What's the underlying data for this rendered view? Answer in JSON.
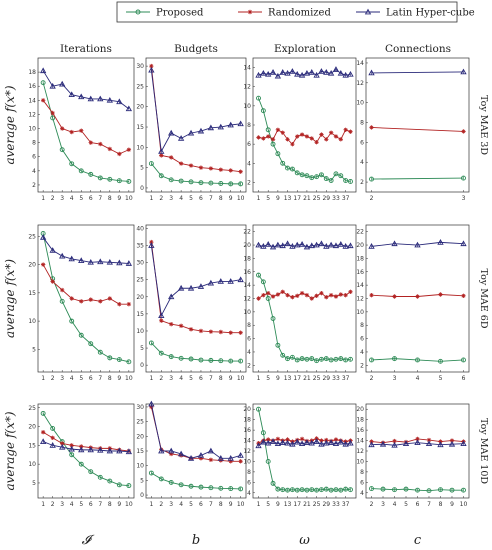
{
  "legend": [
    {
      "name": "Proposed",
      "color": "#2e8b57",
      "marker": "circle"
    },
    {
      "name": "Randomized",
      "color": "#b22222",
      "marker": "star"
    },
    {
      "name": "Latin Hyper-cube",
      "color": "#2a2a7a",
      "marker": "triangle"
    }
  ],
  "column_titles": [
    "Iterations",
    "Budgets",
    "Exploration",
    "Connections"
  ],
  "row_labels": [
    "Toy MAE 3D",
    "Toy MAE 6D",
    "Toy MAE 10D"
  ],
  "ylabel": "average f(x*)",
  "xlabels": [
    "𝓘",
    "b",
    "ω",
    "c"
  ],
  "chart_data": [
    {
      "type": "line",
      "row": 0,
      "col": 0,
      "x": [
        1,
        2,
        3,
        4,
        5,
        6,
        7,
        8,
        9,
        10
      ],
      "ylim": [
        1,
        20
      ],
      "yticks": [
        2,
        4,
        6,
        8,
        10,
        12,
        14,
        16,
        18
      ],
      "xticks": [
        1,
        2,
        3,
        4,
        5,
        6,
        7,
        8,
        9,
        10
      ],
      "series": [
        {
          "name": "Proposed",
          "values": [
            16.5,
            11.5,
            7,
            5,
            4,
            3.5,
            3,
            2.8,
            2.6,
            2.5
          ]
        },
        {
          "name": "Randomized",
          "values": [
            14,
            12.2,
            10,
            9.5,
            9.7,
            8,
            7.8,
            7.1,
            6.4,
            7
          ]
        },
        {
          "name": "Latin Hyper-cube",
          "values": [
            18.2,
            16,
            16.3,
            14.8,
            14.5,
            14.2,
            14.2,
            14,
            13.8,
            12.8
          ]
        }
      ]
    },
    {
      "type": "line",
      "row": 0,
      "col": 1,
      "x": [
        1,
        2,
        3,
        4,
        5,
        6,
        7,
        8,
        9,
        10
      ],
      "ylim": [
        -1,
        32
      ],
      "yticks": [
        0,
        5,
        10,
        15,
        20,
        25,
        30
      ],
      "xticks": [
        1,
        2,
        3,
        4,
        5,
        6,
        7,
        8,
        9,
        10
      ],
      "series": [
        {
          "name": "Proposed",
          "values": [
            6,
            3,
            2,
            1.7,
            1.5,
            1.3,
            1.2,
            1.1,
            1.0,
            1.0
          ]
        },
        {
          "name": "Randomized",
          "values": [
            30,
            8,
            7.5,
            6,
            5.5,
            5,
            4.8,
            4.5,
            4.3,
            4
          ]
        },
        {
          "name": "Latin Hyper-cube",
          "values": [
            29,
            9,
            13.5,
            12.2,
            13.5,
            14,
            14.8,
            15,
            15.5,
            15.8
          ]
        }
      ]
    },
    {
      "type": "line",
      "row": 0,
      "col": 2,
      "x": [
        1,
        3,
        5,
        7,
        9,
        11,
        13,
        15,
        17,
        19,
        21,
        23,
        25,
        27,
        29,
        31,
        33,
        35,
        37,
        39
      ],
      "ylim": [
        1,
        15
      ],
      "yticks": [
        2,
        4,
        6,
        8,
        10,
        12,
        14
      ],
      "xticks": [
        1,
        5,
        9,
        13,
        17,
        21,
        25,
        29,
        33,
        37
      ],
      "series": [
        {
          "name": "Proposed",
          "values": [
            10.8,
            9.5,
            7.5,
            6,
            5,
            4,
            3.5,
            3.4,
            3,
            2.8,
            2.7,
            2.5,
            2.6,
            2.8,
            2.4,
            2.2,
            2.9,
            2.7,
            2.2,
            2.1
          ]
        },
        {
          "name": "Randomized",
          "values": [
            6.7,
            6.6,
            6.8,
            6.5,
            7.5,
            7.2,
            6.5,
            6,
            6.8,
            7,
            6.8,
            6.6,
            6.2,
            7,
            6.5,
            7.2,
            6.8,
            6.5,
            7.5,
            7.3
          ]
        },
        {
          "name": "Latin Hyper-cube",
          "values": [
            13.2,
            13.4,
            13.3,
            13.5,
            13.1,
            13.5,
            13.4,
            13.6,
            13.3,
            13.2,
            13.4,
            13.5,
            13.2,
            13.6,
            13.5,
            13.4,
            13.8,
            13.4,
            13.2,
            13.3
          ]
        }
      ]
    },
    {
      "type": "line",
      "row": 0,
      "col": 3,
      "x": [
        2,
        3
      ],
      "ylim": [
        1,
        14.5
      ],
      "yticks": [
        2,
        4,
        6,
        8,
        10,
        12,
        14
      ],
      "xticks": [
        2,
        3
      ],
      "series": [
        {
          "name": "Proposed",
          "values": [
            2.3,
            2.4
          ]
        },
        {
          "name": "Randomized",
          "values": [
            7.5,
            7.1
          ]
        },
        {
          "name": "Latin Hyper-cube",
          "values": [
            13,
            13.1
          ]
        }
      ]
    },
    {
      "type": "line",
      "row": 1,
      "col": 0,
      "x": [
        1,
        2,
        3,
        4,
        5,
        6,
        7,
        8,
        9,
        10
      ],
      "ylim": [
        1,
        27
      ],
      "yticks": [
        5,
        10,
        15,
        20,
        25
      ],
      "xticks": [
        1,
        2,
        3,
        4,
        5,
        6,
        7,
        8,
        9,
        10
      ],
      "series": [
        {
          "name": "Proposed",
          "values": [
            25.5,
            17.5,
            13.5,
            10,
            7.5,
            6,
            4.5,
            3.5,
            3.2,
            2.8
          ]
        },
        {
          "name": "Randomized",
          "values": [
            20,
            17,
            15.5,
            14,
            13.5,
            13.8,
            13.5,
            14,
            13,
            13
          ]
        },
        {
          "name": "Latin Hyper-cube",
          "values": [
            24.8,
            22.5,
            21.5,
            21,
            20.7,
            20.4,
            20.5,
            20.4,
            20.3,
            20.2
          ]
        }
      ]
    },
    {
      "type": "line",
      "row": 1,
      "col": 1,
      "x": [
        1,
        2,
        3,
        4,
        5,
        6,
        7,
        8,
        9,
        10
      ],
      "ylim": [
        -2,
        41
      ],
      "yticks": [
        0,
        5,
        10,
        15,
        20,
        25,
        30,
        35,
        40
      ],
      "xticks": [
        1,
        2,
        3,
        4,
        5,
        6,
        7,
        8,
        9,
        10
      ],
      "series": [
        {
          "name": "Proposed",
          "values": [
            6.5,
            3.5,
            2.5,
            2,
            1.8,
            1.5,
            1.4,
            1.3,
            1.2,
            1.2
          ]
        },
        {
          "name": "Randomized",
          "values": [
            36,
            13,
            12,
            11.5,
            10.5,
            10,
            9.8,
            9.7,
            9.5,
            9.5
          ]
        },
        {
          "name": "Latin Hyper-cube",
          "values": [
            35,
            14.5,
            20,
            22.5,
            22.5,
            23,
            24,
            24.5,
            24.5,
            25
          ]
        }
      ]
    },
    {
      "type": "line",
      "row": 1,
      "col": 2,
      "x": [
        1,
        3,
        5,
        7,
        9,
        11,
        13,
        15,
        17,
        19,
        21,
        23,
        25,
        27,
        29,
        31,
        33,
        35,
        37,
        39
      ],
      "ylim": [
        1,
        23
      ],
      "yticks": [
        2,
        4,
        6,
        8,
        10,
        12,
        14,
        16,
        18,
        20,
        22
      ],
      "xticks": [
        1,
        5,
        9,
        13,
        17,
        21,
        25,
        29,
        33,
        37
      ],
      "series": [
        {
          "name": "Proposed",
          "values": [
            15.5,
            14.5,
            12,
            9,
            5,
            3.5,
            3,
            3.2,
            2.8,
            3,
            2.9,
            3,
            2.7,
            2.9,
            3,
            2.8,
            2.9,
            3,
            2.8,
            2.9
          ]
        },
        {
          "name": "Randomized",
          "values": [
            12,
            12.5,
            12.8,
            12.3,
            12.6,
            13,
            12.5,
            12.2,
            12.4,
            12.8,
            12.5,
            12,
            12.4,
            12.8,
            12.2,
            12.5,
            12.3,
            12.6,
            12.5,
            13
          ]
        },
        {
          "name": "Latin Hyper-cube",
          "values": [
            20,
            19.8,
            20.1,
            19.7,
            20,
            19.9,
            20.2,
            19.8,
            20,
            20.1,
            19.7,
            19.9,
            20,
            20.2,
            19.8,
            20,
            19.9,
            20.1,
            19.8,
            19.9
          ]
        }
      ]
    },
    {
      "type": "line",
      "row": 1,
      "col": 3,
      "x": [
        2,
        3,
        4,
        5,
        6
      ],
      "ylim": [
        1,
        23
      ],
      "yticks": [
        2,
        4,
        6,
        8,
        10,
        12,
        14,
        16,
        18,
        20,
        22
      ],
      "xticks": [
        2,
        3,
        4,
        5,
        6
      ],
      "series": [
        {
          "name": "Proposed",
          "values": [
            2.8,
            3,
            2.8,
            2.6,
            2.8
          ]
        },
        {
          "name": "Randomized",
          "values": [
            12.5,
            12.3,
            12.3,
            12.6,
            12.4
          ]
        },
        {
          "name": "Latin Hyper-cube",
          "values": [
            19.8,
            20.2,
            20,
            20.4,
            20.2
          ]
        }
      ]
    },
    {
      "type": "line",
      "row": 2,
      "col": 0,
      "x": [
        1,
        2,
        3,
        4,
        5,
        6,
        7,
        8,
        9,
        10
      ],
      "ylim": [
        1,
        26
      ],
      "yticks": [
        5,
        10,
        15,
        20,
        25
      ],
      "xticks": [
        1,
        2,
        3,
        4,
        5,
        6,
        7,
        8,
        9,
        10
      ],
      "series": [
        {
          "name": "Proposed",
          "values": [
            23.5,
            19.5,
            16,
            12.5,
            10,
            8,
            6.5,
            5.5,
            4.5,
            4.3
          ]
        },
        {
          "name": "Randomized",
          "values": [
            18.5,
            17,
            15.5,
            15,
            14.7,
            14.4,
            14.2,
            14.2,
            13.8,
            13.5
          ]
        },
        {
          "name": "Latin Hyper-cube",
          "values": [
            16,
            15,
            14.5,
            14,
            13.8,
            13.8,
            13.7,
            13.5,
            13.5,
            13.3
          ]
        }
      ]
    },
    {
      "type": "line",
      "row": 2,
      "col": 1,
      "x": [
        1,
        2,
        3,
        4,
        5,
        6,
        7,
        8,
        9,
        10
      ],
      "ylim": [
        -1,
        31
      ],
      "yticks": [
        0,
        5,
        10,
        15,
        20,
        25,
        30
      ],
      "xticks": [
        1,
        2,
        3,
        4,
        5,
        6,
        7,
        8,
        9,
        10
      ],
      "series": [
        {
          "name": "Proposed",
          "values": [
            7.5,
            5.5,
            4.3,
            3.5,
            3,
            2.7,
            2.5,
            2.3,
            2.2,
            2.1
          ]
        },
        {
          "name": "Randomized",
          "values": [
            30,
            15.5,
            14,
            13.5,
            12.5,
            12.5,
            12,
            11.8,
            11.5,
            11.5
          ]
        },
        {
          "name": "Latin Hyper-cube",
          "values": [
            31,
            15,
            15,
            14,
            12.5,
            13.5,
            15,
            12.5,
            12.5,
            13.5
          ]
        }
      ]
    },
    {
      "type": "line",
      "row": 2,
      "col": 2,
      "x": [
        1,
        3,
        5,
        7,
        9,
        11,
        13,
        15,
        17,
        19,
        21,
        23,
        25,
        27,
        29,
        31,
        33,
        35,
        37,
        39
      ],
      "ylim": [
        3,
        21
      ],
      "yticks": [
        4,
        6,
        8,
        10,
        12,
        14,
        16,
        18,
        20
      ],
      "xticks": [
        1,
        5,
        9,
        13,
        17,
        21,
        25,
        29,
        33,
        37
      ],
      "series": [
        {
          "name": "Proposed",
          "values": [
            20,
            15.5,
            10,
            5.8,
            4.7,
            4.6,
            4.5,
            4.6,
            4.5,
            4.6,
            4.5,
            4.6,
            4.5,
            4.6,
            4.7,
            4.5,
            4.6,
            4.5,
            4.7,
            4.6
          ]
        },
        {
          "name": "Randomized",
          "values": [
            13.5,
            14,
            14.2,
            14,
            14.3,
            14,
            14.2,
            13.8,
            14.1,
            14.3,
            13.9,
            14,
            14.4,
            14,
            14.1,
            13.9,
            14.2,
            14,
            13.8,
            14
          ]
        },
        {
          "name": "Latin Hyper-cube",
          "values": [
            13,
            13.7,
            13.5,
            13.8,
            13.4,
            13.6,
            13.5,
            13.3,
            13.7,
            13.4,
            13.6,
            13.5,
            13.8,
            13.3,
            13.5,
            13.6,
            13.4,
            13.7,
            13.3,
            13.5
          ]
        }
      ]
    },
    {
      "type": "line",
      "row": 2,
      "col": 3,
      "x": [
        2,
        3,
        4,
        5,
        6,
        7,
        8,
        9,
        10
      ],
      "ylim": [
        3,
        21
      ],
      "yticks": [
        4,
        6,
        8,
        10,
        12,
        14,
        16,
        18,
        20
      ],
      "xticks": [
        2,
        3,
        4,
        5,
        6,
        7,
        8,
        9,
        10
      ],
      "series": [
        {
          "name": "Proposed",
          "values": [
            4.8,
            4.7,
            4.6,
            4.7,
            4.5,
            4.4,
            4.6,
            4.5,
            4.5
          ]
        },
        {
          "name": "Randomized",
          "values": [
            13.8,
            13.6,
            13.9,
            13.7,
            14.3,
            14.1,
            13.8,
            14,
            13.8
          ]
        },
        {
          "name": "Latin Hyper-cube",
          "values": [
            13.2,
            13.3,
            13.1,
            13.4,
            13.6,
            13.4,
            13.2,
            13.3,
            13.4
          ]
        }
      ]
    }
  ]
}
